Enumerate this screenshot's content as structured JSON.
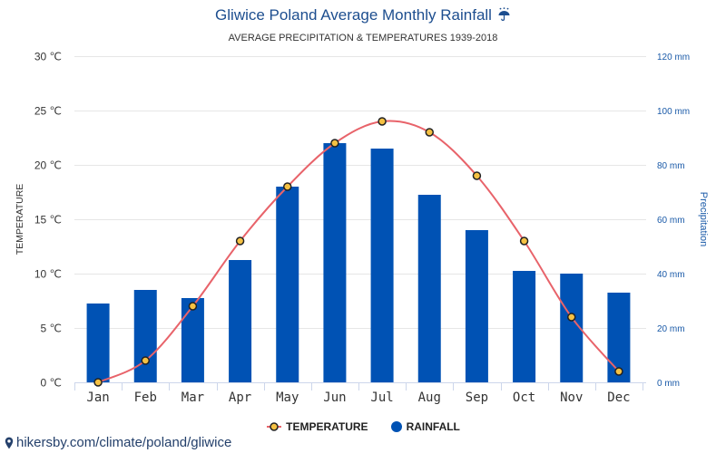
{
  "chart_data": {
    "type": "bar",
    "title": "Gliwice Poland Average Monthly Rainfall",
    "title_icon": "umbrella-icon",
    "subtitle": "AVERAGE PRECIPITATION & TEMPERATURES 1939-2018",
    "categories": [
      "Jan",
      "Feb",
      "Mar",
      "Apr",
      "May",
      "Jun",
      "Jul",
      "Aug",
      "Sep",
      "Oct",
      "Nov",
      "Dec"
    ],
    "series": [
      {
        "name": "TEMPERATURE",
        "type": "line",
        "axis": "left",
        "values": [
          0,
          2,
          7,
          13,
          18,
          22,
          24,
          23,
          19,
          13,
          6,
          1
        ],
        "color": "#e8636a",
        "marker_color": "#f5c143"
      },
      {
        "name": "RAINFALL",
        "type": "bar",
        "axis": "right",
        "values": [
          29,
          34,
          31,
          45,
          72,
          88,
          86,
          69,
          56,
          41,
          40,
          33
        ],
        "color": "#0052b4"
      }
    ],
    "y_left": {
      "label": "TEMPERATURE",
      "range": [
        0,
        30
      ],
      "tick_values": [
        0,
        5,
        10,
        15,
        20,
        25,
        30
      ],
      "tick_labels": [
        "0 ℃",
        "5 ℃",
        "10 ℃",
        "15 ℃",
        "20 ℃",
        "25 ℃",
        "30 ℃"
      ]
    },
    "y_right": {
      "label": "Precipitation",
      "range": [
        0,
        120
      ],
      "tick_values": [
        0,
        20,
        40,
        60,
        80,
        100,
        120
      ],
      "tick_labels": [
        "0 mm",
        "20 mm",
        "40 mm",
        "60 mm",
        "80 mm",
        "100 mm",
        "120 mm"
      ],
      "color": "#1a5aa8"
    },
    "grid": true,
    "legend": "bottom-center"
  },
  "footer": {
    "icon": "map-pin-icon",
    "link_text": "hikersby.com/climate/poland/gliwice"
  }
}
